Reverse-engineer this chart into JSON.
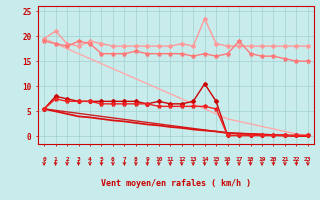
{
  "background_color": "#c8ecec",
  "grid_color": "#a0d0d0",
  "xlabel": "Vent moyen/en rafales ( km/h )",
  "xlabel_color": "#cc0000",
  "tick_color": "#cc0000",
  "axis_color": "#cc0000",
  "yticks": [
    0,
    5,
    10,
    15,
    20,
    25
  ],
  "xticks": [
    0,
    1,
    2,
    3,
    4,
    5,
    6,
    7,
    8,
    9,
    10,
    11,
    12,
    13,
    14,
    15,
    16,
    17,
    18,
    19,
    20,
    21,
    22,
    23
  ],
  "xmin": -0.5,
  "xmax": 23.5,
  "ymin": -1.5,
  "ymax": 26,
  "series": [
    {
      "x": [
        0,
        1,
        2,
        3,
        4,
        5,
        6,
        7,
        8,
        9,
        10,
        11,
        12,
        13,
        14,
        15,
        16,
        17,
        18,
        19,
        20,
        21,
        22,
        23
      ],
      "y": [
        19.5,
        18.5,
        17.5,
        16.5,
        15.5,
        14.5,
        13.5,
        12.5,
        11.5,
        10.5,
        9.5,
        8.5,
        7.5,
        6.5,
        5.5,
        4.5,
        3.5,
        3.0,
        2.5,
        2.0,
        1.5,
        1.0,
        0.5,
        0.2
      ],
      "color": "#ffaaaa",
      "lw": 1.0,
      "marker": null,
      "ms": 0
    },
    {
      "x": [
        0,
        1,
        2,
        3,
        4,
        5,
        6,
        7,
        8,
        9,
        10,
        11,
        12,
        13,
        14,
        15,
        16,
        17,
        18,
        19,
        20,
        21,
        22,
        23
      ],
      "y": [
        19.5,
        21,
        18.5,
        18,
        19,
        18.5,
        18,
        18,
        18,
        18,
        18,
        18,
        18.5,
        18,
        23.5,
        18.5,
        18,
        18,
        18,
        18,
        18,
        18,
        18,
        18
      ],
      "color": "#ff9999",
      "lw": 1.0,
      "marker": "D",
      "ms": 2
    },
    {
      "x": [
        0,
        1,
        2,
        3,
        4,
        5,
        6,
        7,
        8,
        9,
        10,
        11,
        12,
        13,
        14,
        15,
        16,
        17,
        18,
        19,
        20,
        21,
        22,
        23
      ],
      "y": [
        19.0,
        18.5,
        18,
        19,
        18.5,
        16.5,
        16.5,
        16.5,
        17,
        16.5,
        16.5,
        16.5,
        16.5,
        16,
        16.5,
        16,
        16.5,
        19,
        16.5,
        16,
        16,
        15.5,
        15,
        15
      ],
      "color": "#ff7777",
      "lw": 1.0,
      "marker": "*",
      "ms": 3
    },
    {
      "x": [
        0,
        1,
        2,
        3,
        4,
        5,
        6,
        7,
        8,
        9,
        10,
        11,
        12,
        13,
        14,
        15,
        16,
        17,
        18,
        19,
        20,
        21,
        22,
        23
      ],
      "y": [
        5.5,
        5.2,
        4.9,
        4.6,
        4.3,
        4.0,
        3.7,
        3.4,
        3.1,
        2.8,
        2.5,
        2.2,
        1.9,
        1.6,
        1.3,
        1.0,
        0.7,
        0.6,
        0.5,
        0.4,
        0.3,
        0.2,
        0.1,
        0.1
      ],
      "color": "#cc2222",
      "lw": 1.0,
      "marker": null,
      "ms": 0
    },
    {
      "x": [
        0,
        1,
        2,
        3,
        4,
        5,
        6,
        7,
        8,
        9,
        10,
        11,
        12,
        13,
        14,
        15,
        16,
        17,
        18,
        19,
        20,
        21,
        22,
        23
      ],
      "y": [
        5.5,
        8.0,
        7.5,
        7.0,
        7.0,
        7.0,
        7.0,
        7.0,
        7.0,
        6.5,
        7.0,
        6.5,
        6.5,
        7.0,
        10.5,
        7.0,
        0.2,
        0.2,
        0.2,
        0.2,
        0.2,
        0.2,
        0.2,
        0.2
      ],
      "color": "#cc0000",
      "lw": 1.0,
      "marker": "D",
      "ms": 2
    },
    {
      "x": [
        0,
        1,
        2,
        3,
        4,
        5,
        6,
        7,
        8,
        9,
        10,
        11,
        12,
        13,
        14,
        15,
        16,
        17,
        18,
        19,
        20,
        21,
        22,
        23
      ],
      "y": [
        5.5,
        7.5,
        7.0,
        7.0,
        7.0,
        6.5,
        6.5,
        6.5,
        6.5,
        6.5,
        6.0,
        6.0,
        6.0,
        6.0,
        6.0,
        5.5,
        0.2,
        0.2,
        0.2,
        0.2,
        0.2,
        0.2,
        0.2,
        0.2
      ],
      "color": "#ee2222",
      "lw": 1.0,
      "marker": "*",
      "ms": 3
    },
    {
      "x": [
        0,
        1,
        2,
        3,
        4,
        5,
        6,
        7,
        8,
        9,
        10,
        11,
        12,
        13,
        14,
        15,
        16,
        17,
        18,
        19,
        20,
        21,
        22,
        23
      ],
      "y": [
        5.5,
        5.0,
        4.5,
        4.0,
        3.8,
        3.5,
        3.2,
        3.0,
        2.7,
        2.4,
        2.2,
        1.9,
        1.7,
        1.4,
        1.2,
        1.0,
        0.7,
        0.6,
        0.5,
        0.4,
        0.3,
        0.2,
        0.1,
        0.1
      ],
      "color": "#dd1111",
      "lw": 1.3,
      "marker": null,
      "ms": 0
    }
  ],
  "arrow_color": "#cc0000",
  "font_color": "#cc0000"
}
